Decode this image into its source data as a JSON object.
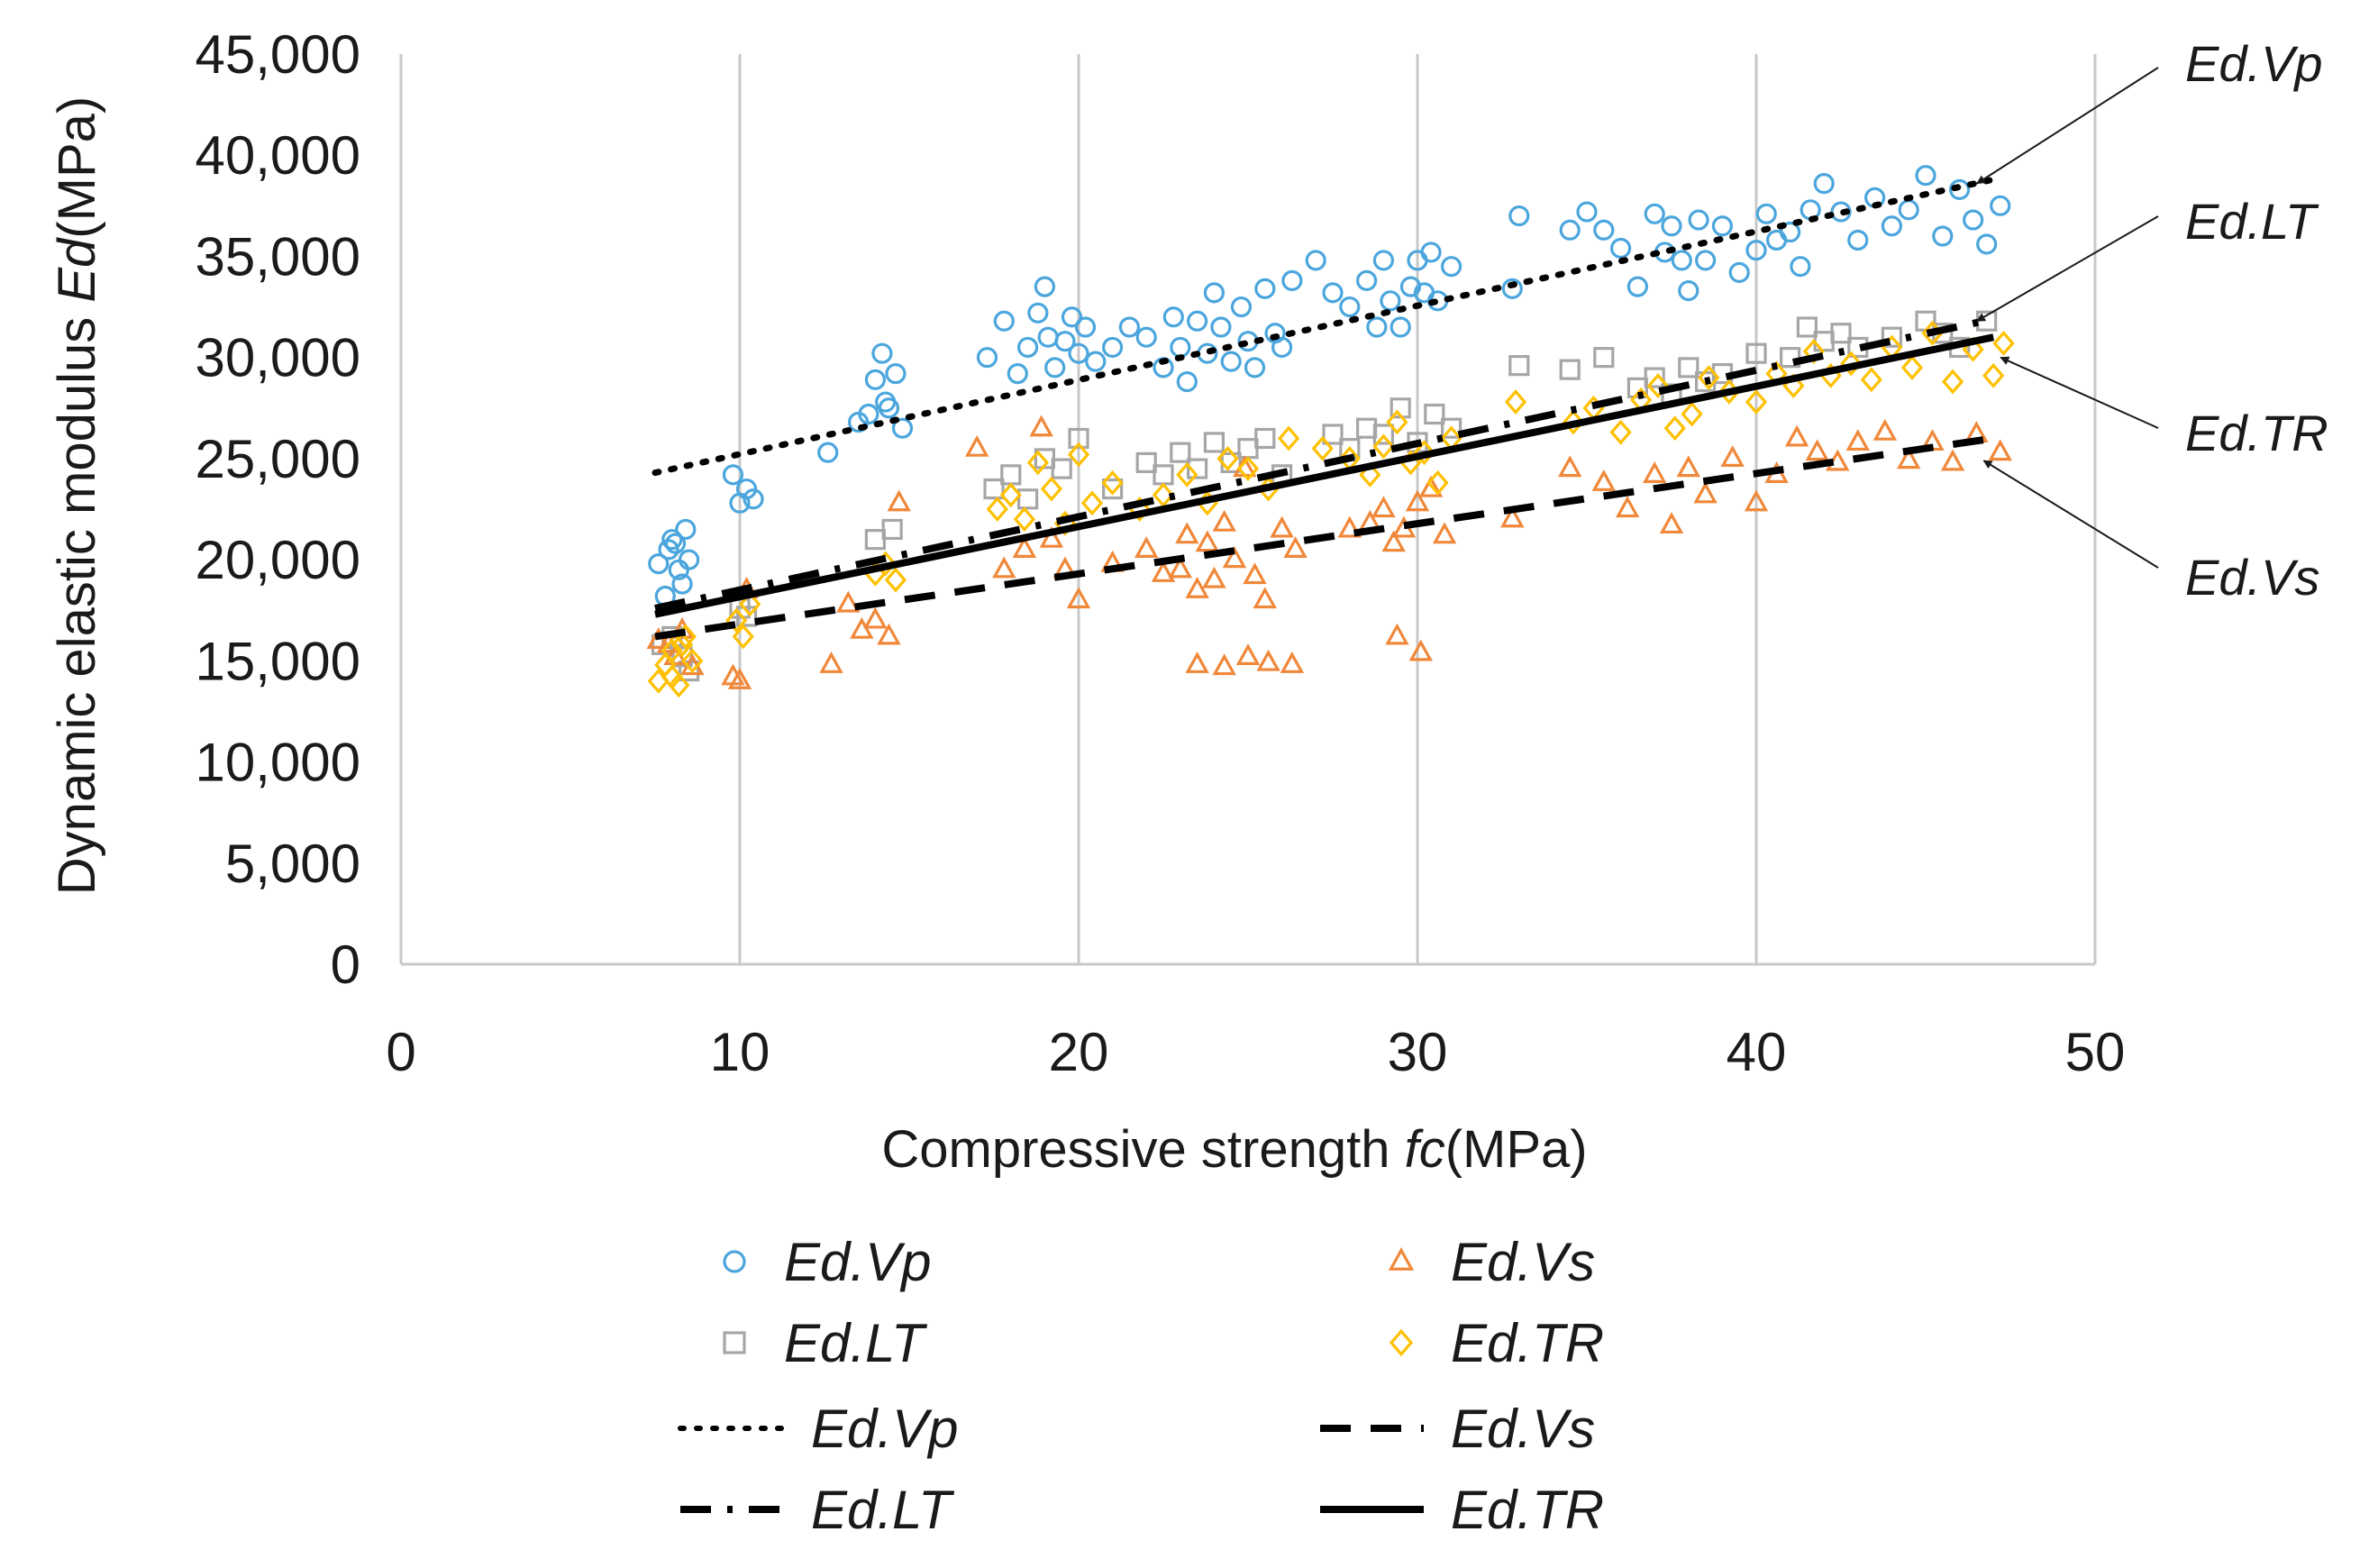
{
  "chart_data": {
    "type": "scatter",
    "xlabel_prefix": "Compressive strength ",
    "xlabel_var": "fc",
    "xlabel_unit": "(MPa)",
    "ylabel_prefix": "Dynamic elastic modulus ",
    "ylabel_var": "Ed",
    "ylabel_unit": "(MPa)",
    "xlim": [
      0,
      50
    ],
    "ylim": [
      0,
      45000
    ],
    "x_ticks": [
      0,
      10,
      20,
      30,
      40,
      50
    ],
    "y_ticks": [
      0,
      5000,
      10000,
      15000,
      20000,
      25000,
      30000,
      35000,
      40000,
      45000
    ],
    "x_tick_labels": [
      "0",
      "10",
      "20",
      "30",
      "40",
      "50"
    ],
    "y_tick_labels": [
      "0",
      "5,000",
      "10,000",
      "15,000",
      "20,000",
      "25,000",
      "30,000",
      "35,000",
      "40,000",
      "45,000"
    ],
    "grid": "vertical",
    "colors": {
      "vp": "#4ba6dd",
      "vs": "#f0883a",
      "lt": "#a6a6a6",
      "tr": "#ffc000",
      "line": "#000000",
      "axis": "#c8c8c8"
    },
    "series": [
      {
        "name": "Ed.Vp",
        "marker": "circle",
        "color": "#4ba6dd",
        "x": [
          7.6,
          7.9,
          8.0,
          8.2,
          8.4,
          8.5,
          8.3,
          8.1,
          7.8,
          9.8,
          10.0,
          10.2,
          10.4,
          12.6,
          13.5,
          13.8,
          14.0,
          14.2,
          14.4,
          14.6,
          14.8,
          14.3,
          17.3,
          17.8,
          18.2,
          18.5,
          18.8,
          19.0,
          19.1,
          19.3,
          19.6,
          19.8,
          20.0,
          20.2,
          20.5,
          21.0,
          21.5,
          22.0,
          22.5,
          22.8,
          23.0,
          23.2,
          23.5,
          23.8,
          24.0,
          24.2,
          24.5,
          24.8,
          25.0,
          25.2,
          25.5,
          25.8,
          26.0,
          26.3,
          27.0,
          27.5,
          28.0,
          28.5,
          28.8,
          29.0,
          29.2,
          29.5,
          29.8,
          30.0,
          30.2,
          30.4,
          30.6,
          31.0,
          32.8,
          33.0,
          34.5,
          35.0,
          35.5,
          36.0,
          36.5,
          37.0,
          37.3,
          37.5,
          37.8,
          38.0,
          38.3,
          38.5,
          39.0,
          39.5,
          40.0,
          40.3,
          40.6,
          41.0,
          41.3,
          41.6,
          42.0,
          42.5,
          43.0,
          43.5,
          44.0,
          44.5,
          45.0,
          45.5,
          46.0,
          46.4,
          46.8,
          47.2
        ],
        "y": [
          19800,
          20500,
          21000,
          19500,
          21500,
          20000,
          18800,
          20800,
          18200,
          24200,
          22800,
          23500,
          23000,
          25300,
          26800,
          27200,
          28900,
          30200,
          27500,
          29200,
          26500,
          27800,
          30000,
          31800,
          29200,
          30500,
          32200,
          33500,
          31000,
          29500,
          30800,
          32000,
          30200,
          31500,
          29800,
          30500,
          31500,
          31000,
          29500,
          32000,
          30500,
          28800,
          31800,
          30200,
          33200,
          31500,
          29800,
          32500,
          30800,
          29500,
          33400,
          31200,
          30500,
          33800,
          34800,
          33200,
          32500,
          33800,
          31500,
          34800,
          32800,
          31500,
          33500,
          34800,
          33200,
          35200,
          32800,
          34500,
          33400,
          37000,
          36300,
          37200,
          36300,
          35400,
          33500,
          37100,
          35200,
          36500,
          34800,
          33300,
          36800,
          34800,
          36500,
          34200,
          35300,
          37100,
          35800,
          36200,
          34500,
          37300,
          38600,
          37200,
          35800,
          37900,
          36500,
          37300,
          39000,
          36000,
          38300,
          36800,
          35600,
          37500
        ]
      },
      {
        "name": "Ed.Vs",
        "marker": "triangle",
        "color": "#f0883a",
        "x": [
          7.6,
          7.9,
          8.1,
          8.3,
          8.6,
          9.8,
          10.0,
          10.2,
          12.7,
          13.2,
          13.6,
          14.0,
          14.4,
          14.7,
          17.0,
          17.8,
          18.4,
          18.9,
          19.2,
          19.6,
          20.0,
          21.0,
          22.0,
          22.5,
          23.0,
          23.2,
          23.5,
          23.8,
          24.0,
          24.3,
          24.6,
          24.9,
          25.2,
          25.5,
          26.0,
          26.4,
          23.5,
          24.3,
          25.0,
          25.6,
          26.3,
          28.0,
          28.6,
          29.0,
          29.3,
          29.6,
          30.0,
          30.4,
          30.8,
          29.4,
          30.1,
          32.8,
          34.5,
          35.5,
          36.2,
          37.0,
          37.5,
          38.0,
          38.5,
          39.3,
          40.0,
          40.6,
          41.2,
          41.8,
          42.4,
          43.0,
          43.8,
          44.5,
          45.2,
          45.8,
          46.5,
          47.2
        ],
        "y": [
          16000,
          15800,
          15200,
          16500,
          14700,
          14200,
          14000,
          18500,
          14800,
          17800,
          16500,
          17000,
          16200,
          22800,
          25500,
          19500,
          20500,
          26500,
          21000,
          19500,
          18000,
          19800,
          20500,
          19300,
          19500,
          21200,
          18500,
          20800,
          19000,
          21800,
          20000,
          24500,
          19200,
          18000,
          21500,
          20500,
          14800,
          14700,
          15200,
          14900,
          14800,
          21500,
          21800,
          22500,
          20800,
          21500,
          22800,
          23500,
          21200,
          16200,
          15400,
          22000,
          24500,
          23800,
          22500,
          24200,
          21700,
          24500,
          23200,
          25000,
          22800,
          24200,
          26000,
          25300,
          24800,
          25800,
          26300,
          24900,
          25800,
          24800,
          26200,
          25300
        ]
      },
      {
        "name": "Ed.LT",
        "marker": "square",
        "color": "#a6a6a6",
        "x": [
          7.7,
          8.0,
          8.3,
          8.5,
          10.0,
          10.2,
          14.0,
          14.5,
          17.5,
          18.0,
          18.5,
          19.0,
          19.5,
          20.0,
          21.0,
          22.0,
          22.5,
          23.0,
          23.5,
          24.0,
          24.5,
          25.0,
          25.5,
          26.0,
          27.5,
          28.0,
          28.5,
          29.0,
          29.5,
          30.0,
          30.5,
          31.0,
          33.0,
          34.5,
          35.5,
          36.5,
          37.0,
          37.5,
          38.0,
          38.5,
          39.0,
          40.0,
          41.0,
          41.5,
          42.0,
          42.5,
          43.0,
          44.0,
          45.0,
          45.5,
          46.0,
          46.8
        ],
        "y": [
          15800,
          16200,
          15200,
          14500,
          17600,
          17200,
          21000,
          21500,
          23500,
          24200,
          23000,
          25000,
          24500,
          26000,
          23500,
          24800,
          24200,
          25300,
          24500,
          25800,
          24800,
          25500,
          26000,
          24200,
          26200,
          25500,
          26500,
          26200,
          27500,
          25800,
          27200,
          26500,
          29600,
          29400,
          30000,
          28500,
          29000,
          28200,
          29500,
          28800,
          29200,
          30200,
          30000,
          31500,
          30800,
          31200,
          30500,
          31000,
          31800,
          31200,
          30500,
          31800
        ]
      },
      {
        "name": "Ed.TR",
        "marker": "diamond",
        "color": "#ffc000",
        "x": [
          7.6,
          7.8,
          8.0,
          8.2,
          8.4,
          8.6,
          8.0,
          8.3,
          9.9,
          10.1,
          10.3,
          14.0,
          14.3,
          14.6,
          17.6,
          18.0,
          18.4,
          18.8,
          19.2,
          19.6,
          20.0,
          20.4,
          21.0,
          21.8,
          22.5,
          23.2,
          23.8,
          24.4,
          25.0,
          25.6,
          26.2,
          27.2,
          28.0,
          28.6,
          29.0,
          29.4,
          29.8,
          30.2,
          30.6,
          31.0,
          32.9,
          34.6,
          35.2,
          36.0,
          36.6,
          37.1,
          37.6,
          38.1,
          38.6,
          39.2,
          40.0,
          40.6,
          41.1,
          41.7,
          42.2,
          42.8,
          43.4,
          44.0,
          44.6,
          45.2,
          45.8,
          46.4,
          47.0,
          47.3
        ],
        "y": [
          14000,
          14800,
          15500,
          13800,
          16200,
          15000,
          14200,
          15800,
          17000,
          16200,
          17800,
          19300,
          19800,
          19000,
          22500,
          23200,
          22000,
          24800,
          23500,
          21800,
          25200,
          22800,
          23800,
          22500,
          23200,
          24200,
          22800,
          25000,
          24500,
          23500,
          26000,
          25500,
          25000,
          24200,
          25600,
          26800,
          24800,
          25300,
          23800,
          26000,
          27800,
          26800,
          27500,
          26300,
          27900,
          28600,
          26500,
          27200,
          29000,
          28300,
          27800,
          29200,
          28600,
          30300,
          29100,
          29700,
          28900,
          30500,
          29500,
          31200,
          28800,
          30400,
          29100,
          30700
        ]
      },
      {
        "name": "Ed.Vp fit",
        "line": "dotted",
        "x": [
          7.5,
          47.0
        ],
        "y": [
          24300,
          38800
        ]
      },
      {
        "name": "Ed.LT fit",
        "line": "dash-dot",
        "x": [
          7.5,
          47.0
        ],
        "y": [
          17600,
          31900
        ]
      },
      {
        "name": "Ed.TR fit",
        "line": "solid",
        "x": [
          7.5,
          47.0
        ],
        "y": [
          17300,
          31000
        ]
      },
      {
        "name": "Ed.Vs fit",
        "line": "dashed",
        "x": [
          7.5,
          47.0
        ],
        "y": [
          16200,
          26000
        ]
      }
    ],
    "annotations": [
      {
        "label": "Ed.Vp",
        "target_x": 46.3,
        "target_y": 38600
      },
      {
        "label": "Ed.LT",
        "target_x": 46.3,
        "target_y": 31800
      },
      {
        "label": "Ed.TR",
        "target_x": 47.0,
        "target_y": 30000
      },
      {
        "label": "Ed.Vs",
        "target_x": 46.5,
        "target_y": 24900
      }
    ],
    "legend_position": "bottom",
    "legend": [
      {
        "label": "Ed.Vp",
        "kind": "circle"
      },
      {
        "label": "Ed.Vs",
        "kind": "triangle"
      },
      {
        "label": "Ed.LT",
        "kind": "square"
      },
      {
        "label": "Ed.TR",
        "kind": "diamond"
      },
      {
        "label": "Ed.Vp",
        "kind": "dotted"
      },
      {
        "label": "Ed.Vs",
        "kind": "dashed"
      },
      {
        "label": "Ed.LT",
        "kind": "dash-dot"
      },
      {
        "label": "Ed.TR",
        "kind": "solid"
      }
    ]
  }
}
